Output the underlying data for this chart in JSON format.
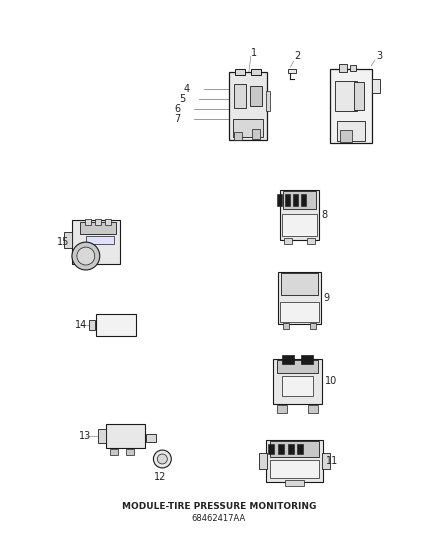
{
  "title": "MODULE-TIRE PRESSURE MONITORING",
  "part_number": "68462417AA",
  "bg": "#ffffff",
  "lc": "#444444",
  "tc": "#222222",
  "gray1": "#c8c8c8",
  "gray2": "#d8d8d8",
  "gray3": "#e8e8e8",
  "gray4": "#f2f2f2",
  "dark": "#888888",
  "black": "#1a1a1a",
  "figw": 4.38,
  "figh": 5.33,
  "dpi": 100
}
